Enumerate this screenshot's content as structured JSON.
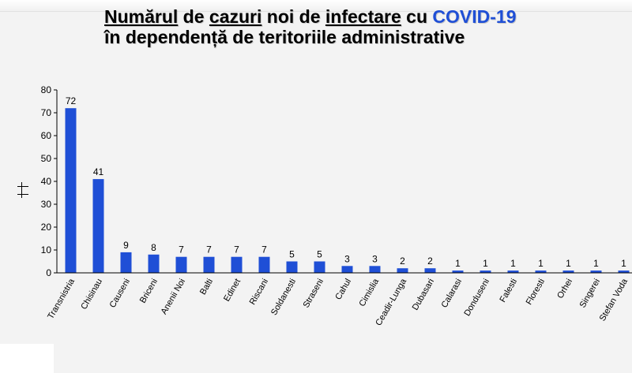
{
  "title": {
    "line1_parts": [
      "Numărul",
      " de ",
      "cazuri",
      " noi de ",
      "infectare",
      " cu "
    ],
    "line1_accent": "COVID-19",
    "line2": "în dependență de teritoriile administrative"
  },
  "chart_data": {
    "type": "bar",
    "title": "Numărul de cazuri noi de infectare cu COVID-19 în dependență de teritoriile administrative",
    "xlabel": "",
    "ylabel": "",
    "ylim": [
      0,
      80
    ],
    "yticks": [
      0,
      10,
      20,
      30,
      40,
      50,
      60,
      70,
      80
    ],
    "grid": false,
    "bar_color": "#1f4fd6",
    "categories": [
      "Transnistria",
      "Chisinau",
      "Causeni",
      "Briceni",
      "Anenii Noi",
      "Balti",
      "Edinet",
      "Riscani",
      "Soldanesti",
      "Straseni",
      "Cahul",
      "Cimislia",
      "Ceadir-Lunga",
      "Dubasari",
      "Calarasi",
      "Donduseni",
      "Falesti",
      "Floresti",
      "Orhei",
      "Singerei",
      "Stefan Voda"
    ],
    "values": [
      72,
      41,
      9,
      8,
      7,
      7,
      7,
      7,
      5,
      5,
      3,
      3,
      2,
      2,
      1,
      1,
      1,
      1,
      1,
      1,
      1
    ]
  }
}
